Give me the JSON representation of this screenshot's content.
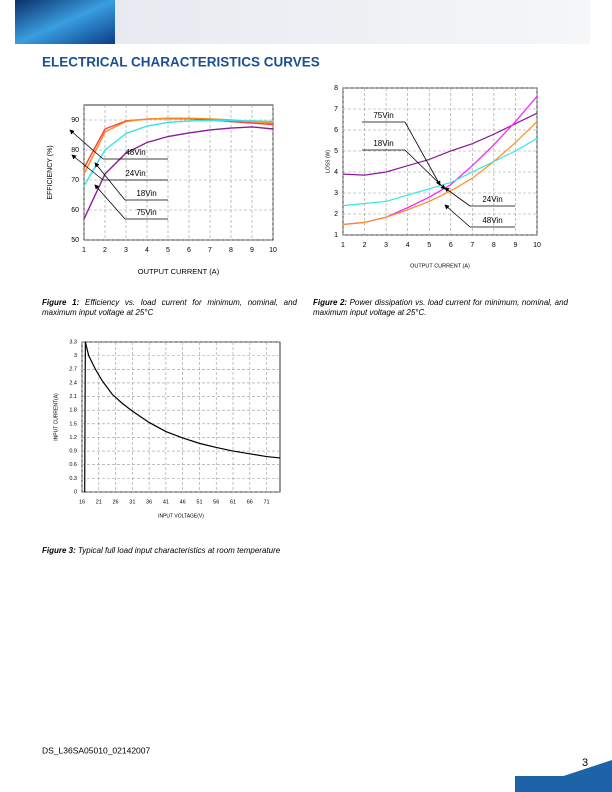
{
  "header": {
    "title": "ELECTRICAL CHARACTERISTICS CURVES"
  },
  "chart_data": [
    {
      "type": "line",
      "xlabel": "OUTPUT CURRENT (A)",
      "ylabel": "EFFICIENCY (%)",
      "x": [
        1,
        2,
        3,
        4,
        5,
        6,
        7,
        8,
        9,
        10
      ],
      "series": [
        {
          "name": "48Vin",
          "color": "#ff3b3b",
          "values": [
            74,
            87,
            89.7,
            90.3,
            90.5,
            90.4,
            90,
            89.5,
            89,
            88.5
          ]
        },
        {
          "name": "24Vin",
          "color": "#ff8c1a",
          "values": [
            72,
            86,
            89.5,
            90.3,
            90.6,
            90.6,
            90.4,
            90,
            89.5,
            89
          ]
        },
        {
          "name": "18Vin",
          "color": "#33e6e6",
          "values": [
            68,
            80,
            85.5,
            88,
            89.2,
            89.7,
            89.8,
            89.8,
            89.7,
            89.5
          ]
        },
        {
          "name": "75Vin",
          "color": "#8a1a9b",
          "values": [
            57,
            72,
            79,
            82.5,
            84.5,
            85.7,
            86.7,
            87.3,
            87.7,
            87
          ]
        }
      ],
      "xlim": [
        1,
        10
      ],
      "ylim": [
        50,
        95
      ],
      "xticks": [
        1,
        2,
        3,
        4,
        5,
        6,
        7,
        8,
        9,
        10
      ],
      "yticks": [
        50,
        60,
        70,
        80,
        90
      ],
      "grid": true
    },
    {
      "type": "line",
      "xlabel": "OUTPUT CURRENT (A)",
      "ylabel": "LOSS (W)",
      "x": [
        1,
        2,
        3,
        4,
        5,
        6,
        7,
        8,
        9,
        10
      ],
      "series": [
        {
          "name": "75Vin",
          "color": "#8a1a9b",
          "values": [
            3.9,
            3.85,
            4.0,
            4.3,
            4.6,
            5.0,
            5.35,
            5.8,
            6.3,
            6.8
          ]
        },
        {
          "name": "18Vin",
          "color": "#ff1aff",
          "values": [
            1.5,
            1.6,
            1.85,
            2.3,
            2.8,
            3.4,
            4.3,
            5.3,
            6.4,
            7.6
          ]
        },
        {
          "name": "24Vin",
          "color": "#ff8c1a",
          "values": [
            1.5,
            1.6,
            1.85,
            2.2,
            2.6,
            3.1,
            3.7,
            4.5,
            5.4,
            6.4
          ]
        },
        {
          "name": "48Vin",
          "color": "#33e6e6",
          "values": [
            2.4,
            2.5,
            2.6,
            2.9,
            3.2,
            3.5,
            4.0,
            4.5,
            5.0,
            5.6
          ]
        }
      ],
      "xlim": [
        1,
        10
      ],
      "ylim": [
        1,
        8
      ],
      "xticks": [
        1,
        2,
        3,
        4,
        5,
        6,
        7,
        8,
        9,
        10
      ],
      "yticks": [
        1,
        2,
        3,
        4,
        5,
        6,
        7,
        8
      ],
      "grid": true
    },
    {
      "type": "line",
      "xlabel": "INPUT VOLTAGE(V)",
      "ylabel": "INPUT CURRENT(A)",
      "x": [
        16.8,
        17,
        18,
        20,
        22,
        25,
        28,
        31,
        36,
        41,
        46,
        51,
        56,
        61,
        66,
        71,
        75
      ],
      "values": [
        0,
        3.3,
        3.0,
        2.7,
        2.45,
        2.15,
        1.95,
        1.78,
        1.53,
        1.33,
        1.19,
        1.07,
        0.98,
        0.9,
        0.84,
        0.78,
        0.75
      ],
      "color": "#000000",
      "xlim": [
        16,
        75
      ],
      "ylim": [
        0,
        3.3
      ],
      "xticks": [
        16,
        21,
        26,
        31,
        36,
        41,
        46,
        51,
        56,
        61,
        66,
        71
      ],
      "yticks": [
        0,
        0.3,
        0.6,
        0.9,
        1.2,
        1.5,
        1.8,
        2.1,
        2.4,
        2.7,
        3,
        3.3
      ],
      "grid": true
    }
  ],
  "captions": [
    {
      "label": "Figure 1:",
      "text": "Efficiency vs. load current for minimum, nominal, and maximum input voltage at 25°C"
    },
    {
      "label": "Figure 2:",
      "text": "Power dissipation vs. load current for minimum, nominal, and maximum input voltage at 25°C."
    },
    {
      "label": "Figure 3:",
      "text": "Typical full load input characteristics at room temperature"
    }
  ],
  "footer": {
    "doc_id": "DS_L36SA05010_02142007",
    "page": "3"
  }
}
